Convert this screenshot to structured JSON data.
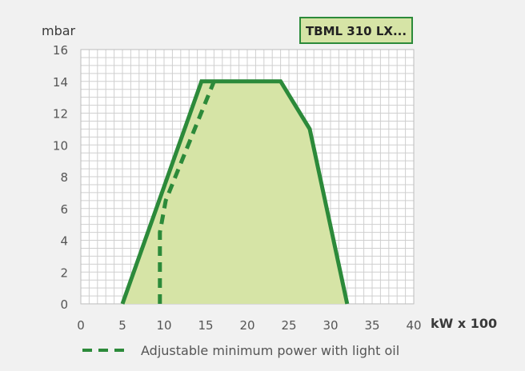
{
  "chart_data": {
    "type": "area",
    "title": "",
    "badge": "TBML 310 LX...",
    "xlabel": "kW x 100",
    "ylabel": "mbar",
    "xlim": [
      0,
      40
    ],
    "ylim": [
      0,
      16
    ],
    "x_ticks": [
      0,
      5,
      10,
      15,
      20,
      25,
      30,
      35,
      40
    ],
    "y_ticks": [
      0,
      2,
      4,
      6,
      8,
      10,
      12,
      14,
      16
    ],
    "grid": true,
    "minor_grid_step_x": 1,
    "minor_grid_step_y": 0.5,
    "series": [
      {
        "style": "solid",
        "fill": true,
        "x": [
          5,
          14.5,
          24,
          27.5,
          32
        ],
        "y": [
          0,
          14,
          14,
          11,
          0
        ]
      },
      {
        "name": "Adjustable minimum power with light oil",
        "style": "dashed",
        "fill": false,
        "x": [
          9.5,
          9.5,
          10.2,
          16
        ],
        "y": [
          0,
          4.5,
          6.5,
          14
        ]
      }
    ],
    "colors": {
      "line": "#2c8a3a",
      "fill": "#d6e4a6",
      "badge_fill": "#d6e4a6",
      "badge_border": "#2c8a3a",
      "grid": "#cfcfcf",
      "panel": "#f1f1f1",
      "plot": "#ffffff"
    }
  }
}
